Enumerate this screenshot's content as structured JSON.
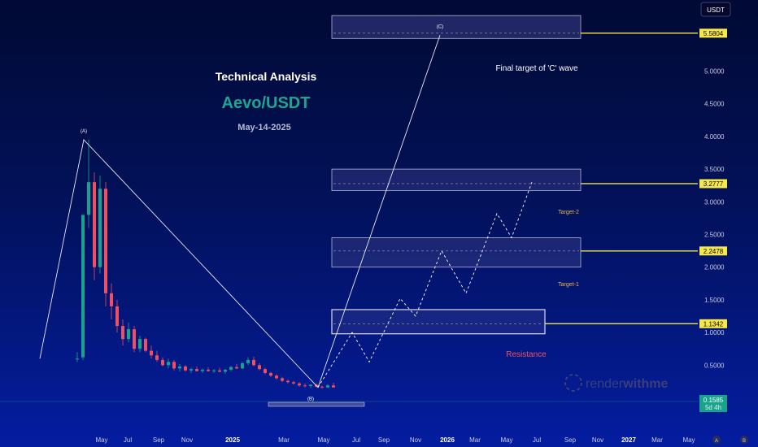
{
  "header": {
    "title": "Technical Analysis",
    "pair": "Aevo/USDT",
    "date": "May-14-2025"
  },
  "unit_box": "USDT",
  "watermark": {
    "text_light": "render",
    "text_bold": "withme"
  },
  "current_price": {
    "value": "0.1585",
    "timer": "5d 4h"
  },
  "colors": {
    "up": "#1aa38c",
    "down": "#ef4f5f",
    "zone_fill": "#3a3f88",
    "zone_stroke": "#b0b3d8",
    "target_line": "#f2e24c",
    "price_tag_bg": "#f6e84a",
    "current_tag_bg": "#1aa38c"
  },
  "chart_data": {
    "type": "candlestick",
    "title": "Technical Analysis",
    "ylim": [
      0,
      6
    ],
    "y_ticks": [
      "5.0000",
      "4.5000",
      "4.0000",
      "3.5000",
      "3.0000",
      "2.5000",
      "2.0000",
      "1.5000",
      "1.0000",
      "0.5000"
    ],
    "x_ticks": [
      {
        "label": "May",
        "year": false
      },
      {
        "label": "Jul",
        "year": false
      },
      {
        "label": "Sep",
        "year": false
      },
      {
        "label": "Nov",
        "year": false
      },
      {
        "label": "2025",
        "year": true
      },
      {
        "label": "Mar",
        "year": false
      },
      {
        "label": "May",
        "year": false
      },
      {
        "label": "Jul",
        "year": false
      },
      {
        "label": "Sep",
        "year": false
      },
      {
        "label": "Nov",
        "year": false
      },
      {
        "label": "2026",
        "year": true
      },
      {
        "label": "Mar",
        "year": false
      },
      {
        "label": "May",
        "year": false
      },
      {
        "label": "Jul",
        "year": false
      },
      {
        "label": "Sep",
        "year": false
      },
      {
        "label": "Nov",
        "year": false
      },
      {
        "label": "2027",
        "year": true
      },
      {
        "label": "Mar",
        "year": false
      },
      {
        "label": "May",
        "year": false
      }
    ],
    "targets": [
      {
        "price": "5.5804",
        "label": "Final target of 'C' wave"
      },
      {
        "price": "3.2777",
        "label": "Target-2"
      },
      {
        "price": "2.2478",
        "label": "Target-1"
      },
      {
        "price": "1.1342",
        "label": "Resistance"
      }
    ],
    "wave_labels": [
      "(A)",
      "(B)",
      "(C)"
    ],
    "wave_points": [
      {
        "name": "start",
        "t": 0,
        "price": 0.6
      },
      {
        "name": "(A)",
        "t": 54,
        "price": 3.95
      },
      {
        "name": "(B)",
        "t": 342,
        "price": 0.16
      },
      {
        "name": "(C)",
        "t": 492,
        "price": 5.55
      }
    ],
    "projection_path": [
      [
        342,
        0.16
      ],
      [
        384,
        1.0
      ],
      [
        405,
        0.55
      ],
      [
        443,
        1.52
      ],
      [
        462,
        1.25
      ],
      [
        494,
        2.25
      ],
      [
        524,
        1.6
      ],
      [
        562,
        2.82
      ],
      [
        580,
        2.45
      ],
      [
        605,
        3.3
      ]
    ],
    "candles": [
      [
        0.6,
        0.7,
        0.55,
        0.6
      ],
      [
        0.62,
        2.8,
        0.58,
        2.8
      ],
      [
        2.8,
        3.95,
        2.6,
        3.3
      ],
      [
        3.3,
        3.45,
        1.8,
        2.0
      ],
      [
        2.0,
        3.4,
        1.9,
        3.2
      ],
      [
        3.2,
        3.3,
        1.4,
        1.6
      ],
      [
        1.6,
        1.75,
        1.2,
        1.4
      ],
      [
        1.4,
        1.5,
        1.0,
        1.1
      ],
      [
        1.1,
        1.2,
        0.8,
        0.9
      ],
      [
        0.9,
        1.15,
        0.85,
        1.05
      ],
      [
        1.05,
        1.1,
        0.7,
        0.75
      ],
      [
        0.75,
        0.95,
        0.7,
        0.9
      ],
      [
        0.9,
        0.92,
        0.7,
        0.72
      ],
      [
        0.72,
        0.8,
        0.6,
        0.65
      ],
      [
        0.65,
        0.72,
        0.55,
        0.58
      ],
      [
        0.58,
        0.62,
        0.48,
        0.5
      ],
      [
        0.5,
        0.6,
        0.45,
        0.55
      ],
      [
        0.55,
        0.58,
        0.42,
        0.45
      ],
      [
        0.45,
        0.52,
        0.4,
        0.48
      ],
      [
        0.48,
        0.5,
        0.4,
        0.42
      ],
      [
        0.42,
        0.46,
        0.38,
        0.44
      ],
      [
        0.44,
        0.48,
        0.4,
        0.41
      ],
      [
        0.41,
        0.45,
        0.38,
        0.43
      ],
      [
        0.43,
        0.47,
        0.4,
        0.41
      ],
      [
        0.41,
        0.44,
        0.38,
        0.42
      ],
      [
        0.42,
        0.46,
        0.39,
        0.4
      ],
      [
        0.4,
        0.44,
        0.37,
        0.43
      ],
      [
        0.43,
        0.49,
        0.41,
        0.47
      ],
      [
        0.47,
        0.52,
        0.44,
        0.45
      ],
      [
        0.45,
        0.55,
        0.44,
        0.53
      ],
      [
        0.53,
        0.62,
        0.5,
        0.58
      ],
      [
        0.58,
        0.63,
        0.48,
        0.5
      ],
      [
        0.5,
        0.53,
        0.42,
        0.44
      ],
      [
        0.44,
        0.46,
        0.36,
        0.38
      ],
      [
        0.38,
        0.4,
        0.32,
        0.34
      ],
      [
        0.34,
        0.36,
        0.28,
        0.3
      ],
      [
        0.3,
        0.32,
        0.24,
        0.26
      ],
      [
        0.26,
        0.28,
        0.22,
        0.24
      ],
      [
        0.24,
        0.26,
        0.2,
        0.22
      ],
      [
        0.22,
        0.24,
        0.17,
        0.19
      ],
      [
        0.19,
        0.22,
        0.16,
        0.18
      ],
      [
        0.18,
        0.21,
        0.15,
        0.2
      ],
      [
        0.2,
        0.22,
        0.16,
        0.17
      ],
      [
        0.17,
        0.19,
        0.14,
        0.16
      ],
      [
        0.16,
        0.21,
        0.15,
        0.19
      ],
      [
        0.19,
        0.23,
        0.17,
        0.1585
      ]
    ]
  }
}
